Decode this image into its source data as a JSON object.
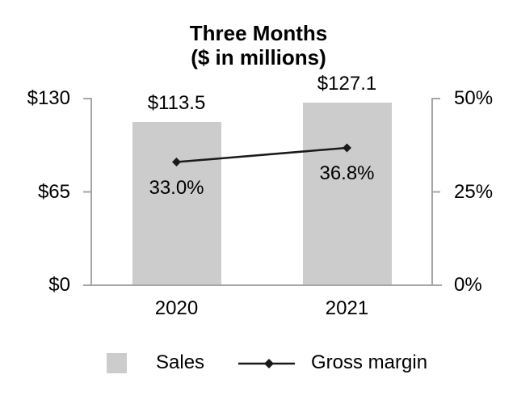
{
  "chart_data": {
    "type": "bar",
    "subtype": "bar-line-combo",
    "title": "Three Months",
    "subtitle": "($ in millions)",
    "categories": [
      "2020",
      "2021"
    ],
    "series": [
      {
        "name": "Sales",
        "render": "bar",
        "axis": "left",
        "values": [
          113.5,
          127.1
        ],
        "labels": [
          "$113.5",
          "$127.1"
        ],
        "color": "#cccccc"
      },
      {
        "name": "Gross margin",
        "render": "line",
        "axis": "right",
        "marker": "diamond",
        "values": [
          33.0,
          36.8
        ],
        "labels": [
          "33.0%",
          "36.8%"
        ],
        "color": "#1a1a1a"
      }
    ],
    "left_axis": {
      "ylim": [
        0,
        130
      ],
      "ticks": [
        {
          "label": "$0",
          "value": 0
        },
        {
          "label": "$65",
          "value": 65
        },
        {
          "label": "$130",
          "value": 130
        }
      ]
    },
    "right_axis": {
      "ylim": [
        0,
        50
      ],
      "ticks": [
        {
          "label": "0%",
          "value": 0
        },
        {
          "label": "25%",
          "value": 25
        },
        {
          "label": "50%",
          "value": 50
        }
      ]
    },
    "legend": [
      {
        "label": "Sales",
        "swatch": "bar"
      },
      {
        "label": "Gross margin",
        "swatch": "line-diamond"
      }
    ],
    "legend_position": "bottom",
    "grid": false
  },
  "colors": {
    "bar_fill": "#cccccc",
    "axis_line": "#a6a6a6",
    "line_color": "#1a1a1a",
    "text": "#000000",
    "background": "#ffffff"
  }
}
